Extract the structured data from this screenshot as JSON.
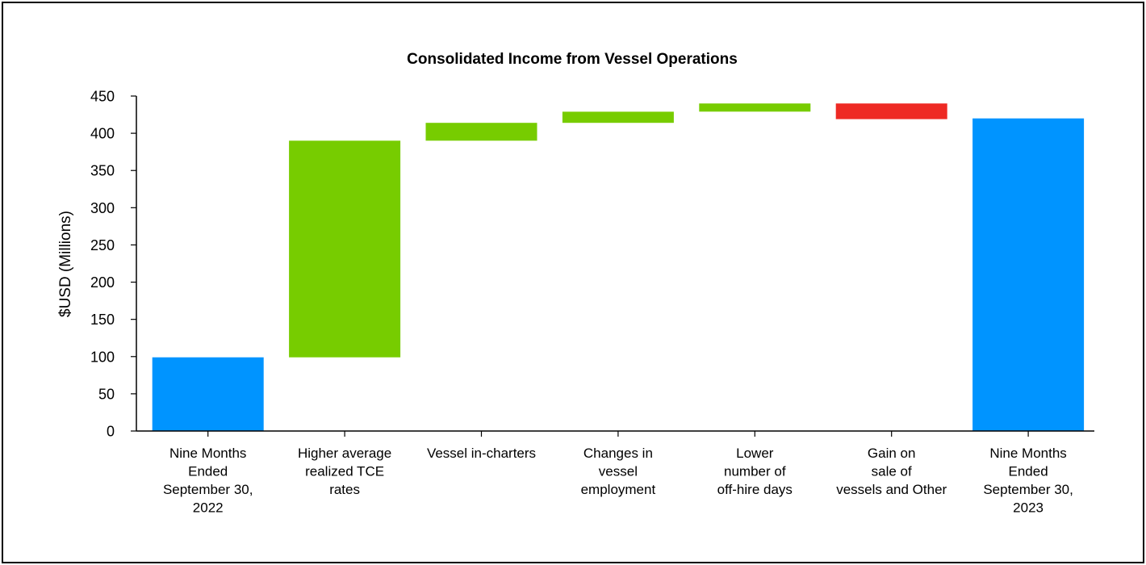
{
  "chart_data": {
    "type": "bar",
    "subtype": "waterfall",
    "title": "Consolidated Income from Vessel Operations",
    "ylabel": "$USD (Millions)",
    "xlabel": "",
    "ylim": [
      0,
      450
    ],
    "yticks": [
      0,
      50,
      100,
      150,
      200,
      250,
      300,
      350,
      400,
      450
    ],
    "grid": false,
    "legend": "none",
    "categories": [
      [
        "Nine Months",
        "Ended",
        "September 30,",
        "2022"
      ],
      [
        "Higher average",
        "realized TCE",
        "rates"
      ],
      [
        "Vessel in-charters"
      ],
      [
        "Changes in",
        "vessel",
        "employment"
      ],
      [
        "Lower",
        "number of",
        "off-hire days"
      ],
      [
        "Gain on",
        "sale of",
        "vessels and Other"
      ],
      [
        "Nine Months",
        "Ended",
        "September 30,",
        "2023"
      ]
    ],
    "bars": [
      {
        "kind": "total",
        "start": 0,
        "end": 99
      },
      {
        "kind": "increase",
        "start": 99,
        "end": 390
      },
      {
        "kind": "increase",
        "start": 390,
        "end": 414
      },
      {
        "kind": "increase",
        "start": 414,
        "end": 429
      },
      {
        "kind": "increase",
        "start": 429,
        "end": 440
      },
      {
        "kind": "decrease",
        "start": 440,
        "end": 419
      },
      {
        "kind": "total",
        "start": 0,
        "end": 420
      }
    ],
    "colors": {
      "total": "#0094FF",
      "increase": "#77CC00",
      "decrease": "#EE2A24",
      "axis": "#000000"
    }
  }
}
